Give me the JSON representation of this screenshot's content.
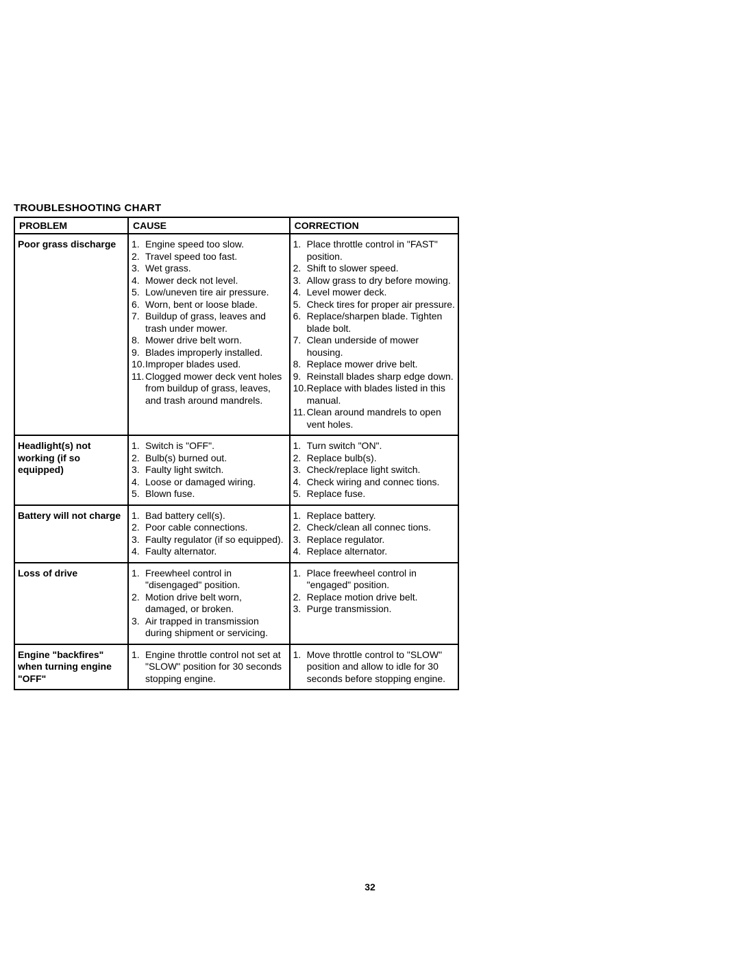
{
  "title": "TROUBLESHOOTING CHART",
  "page_number": "32",
  "headers": {
    "problem": "PROBLEM",
    "cause": "CAUSE",
    "correction": "CORRECTION"
  },
  "rows": [
    {
      "problem": "Poor grass discharge",
      "causes": [
        {
          "n": "1.",
          "t": "Engine speed too slow."
        },
        {
          "n": "2.",
          "t": "Travel speed too fast."
        },
        {
          "n": "3.",
          "t": "Wet grass."
        },
        {
          "n": "4.",
          "t": "Mower deck not level."
        },
        {
          "n": "5.",
          "t": "Low/uneven tire air pressure."
        },
        {
          "n": "6.",
          "t": "Worn, bent or loose blade."
        },
        {
          "n": "7.",
          "t": "Buildup of grass, leaves and trash under mower."
        },
        {
          "n": "8.",
          "t": "Mower drive belt worn."
        },
        {
          "n": "9.",
          "t": "Blades improperly installed."
        },
        {
          "n": "10.",
          "t": "Improper blades used."
        },
        {
          "n": "11.",
          "t": "Clogged mower deck vent holes from buildup of grass, leaves, and trash around mandrels."
        }
      ],
      "corrections": [
        {
          "n": "1.",
          "t": "Place throttle control in \"FAST\" position."
        },
        {
          "n": "2.",
          "t": "Shift to slower speed."
        },
        {
          "n": "3.",
          "t": "Allow grass to dry before mowing."
        },
        {
          "n": "4.",
          "t": "Level mower deck."
        },
        {
          "n": "5.",
          "t": "Check tires for proper air pressure."
        },
        {
          "n": "6.",
          "t": "Replace/sharpen blade. Tighten blade bolt."
        },
        {
          "n": "7.",
          "t": "Clean underside of mower housing."
        },
        {
          "n": "8.",
          "t": "Replace mower drive belt."
        },
        {
          "n": "9.",
          "t": "Reinstall blades sharp edge down."
        },
        {
          "n": "10.",
          "t": "Replace with blades listed in this manual."
        },
        {
          "n": "11.",
          "t": "Clean around mandrels to open vent holes."
        }
      ]
    },
    {
      "problem": "Headlight(s) not working (if so equipped)",
      "causes": [
        {
          "n": "1.",
          "t": "Switch is \"OFF\"."
        },
        {
          "n": "2.",
          "t": "Bulb(s) burned out."
        },
        {
          "n": "3.",
          "t": "Faulty light switch."
        },
        {
          "n": "4.",
          "t": "Loose or damaged wiring."
        },
        {
          "n": "5.",
          "t": "Blown fuse."
        }
      ],
      "corrections": [
        {
          "n": "1.",
          "t": "Turn switch \"ON\"."
        },
        {
          "n": "2.",
          "t": "Replace bulb(s)."
        },
        {
          "n": "3.",
          "t": "Check/replace light switch."
        },
        {
          "n": "4.",
          "t": "Check wiring and connec tions."
        },
        {
          "n": "5.",
          "t": "Replace fuse."
        }
      ]
    },
    {
      "problem": "Battery will not charge",
      "causes": [
        {
          "n": "1.",
          "t": "Bad battery cell(s)."
        },
        {
          "n": "2.",
          "t": "Poor cable connections."
        },
        {
          "n": "3.",
          "t": "Faulty regulator (if so equipped)."
        },
        {
          "n": "4.",
          "t": "Faulty alternator."
        }
      ],
      "corrections": [
        {
          "n": "1.",
          "t": "Replace battery."
        },
        {
          "n": "2.",
          "t": "Check/clean all connec tions."
        },
        {
          "n": "3.",
          "t": "Replace regulator."
        },
        {
          "n": "4.",
          "t": "Replace alternator."
        }
      ]
    },
    {
      "problem": "Loss of drive",
      "causes": [
        {
          "n": "1.",
          "t": "Freewheel control in \"disengaged\" position."
        },
        {
          "n": "2.",
          "t": "Motion drive belt worn, damaged, or broken."
        },
        {
          "n": "3.",
          "t": "Air trapped in transmission during shipment or servicing."
        }
      ],
      "corrections": [
        {
          "n": "1.",
          "t": "Place freewheel control in \"engaged\" position."
        },
        {
          "n": "2.",
          "t": "Replace motion drive belt."
        },
        {
          "n": "3.",
          "t": "Purge transmission."
        }
      ]
    },
    {
      "problem": "Engine \"backfires\" when turning engine \"OFF\"",
      "causes": [
        {
          "n": "1.",
          "t": "Engine throttle control not set at \"SLOW\" position for 30 seconds stopping engine."
        }
      ],
      "corrections": [
        {
          "n": "1.",
          "t": "Move throttle control to \"SLOW\" position and allow to idle for 30 seconds before stopping engine."
        }
      ]
    }
  ]
}
